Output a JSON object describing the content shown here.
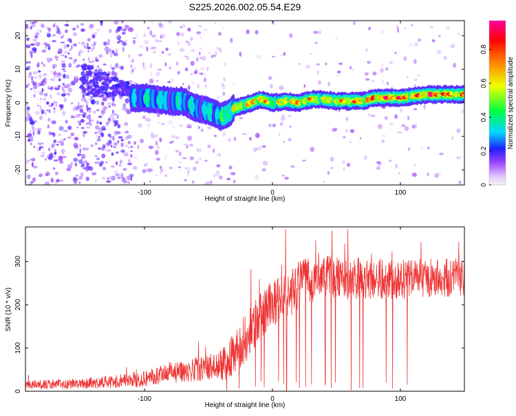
{
  "title": "S225.2026.002.05.54.E29",
  "chart_data": [
    {
      "type": "heatmap",
      "xlabel": "Height of straight line (km)",
      "ylabel": "Frequency (Hz)",
      "xlim": [
        -193,
        150
      ],
      "ylim": [
        -24.5,
        24.5
      ],
      "xticks": [
        -100,
        0,
        100
      ],
      "yticks": [
        -20,
        -10,
        0,
        10,
        20
      ],
      "colorbar": {
        "label": "Normalized spectral amplitude",
        "range": [
          0,
          0.97
        ],
        "ticks": [
          0,
          0.2,
          0.4,
          0.6,
          0.8
        ]
      },
      "ridge": {
        "x": [
          -110,
          -100,
          -90,
          -80,
          -70,
          -60,
          -50,
          -40,
          -35,
          -30,
          -20,
          -10,
          0,
          10,
          20,
          30,
          40,
          50,
          60,
          70,
          80,
          90,
          100,
          110,
          120,
          130,
          140,
          150
        ],
        "freq": [
          1.5,
          1.5,
          1.0,
          0.5,
          0.5,
          -1.5,
          -2.5,
          -4.0,
          -3.5,
          -1.5,
          -0.5,
          1.0,
          0.0,
          0.5,
          0.0,
          1.0,
          1.0,
          0.5,
          0.5,
          0.5,
          1.5,
          1.5,
          1.5,
          2.0,
          2.5,
          2.5,
          2.5,
          2.5
        ],
        "amp": [
          0.3,
          0.35,
          0.35,
          0.3,
          0.4,
          0.3,
          0.35,
          0.4,
          0.5,
          0.6,
          0.7,
          0.85,
          0.55,
          0.7,
          0.75,
          0.7,
          0.6,
          0.7,
          0.75,
          0.8,
          0.85,
          0.95,
          0.9,
          0.75,
          0.9,
          0.95,
          0.8,
          0.7
        ]
      }
    },
    {
      "type": "line",
      "xlabel": "Height of straight line (km)",
      "ylabel": "SNR (10 * v/v)",
      "xlim": [
        -193,
        150
      ],
      "ylim": [
        0,
        380
      ],
      "xticks": [
        -100,
        0,
        100
      ],
      "yticks": [
        0,
        100,
        200,
        300
      ],
      "color": "#ee3333",
      "envelope": {
        "x": [
          -193,
          -150,
          -120,
          -100,
          -90,
          -80,
          -70,
          -60,
          -50,
          -40,
          -35,
          -30,
          -25,
          -20,
          -15,
          -10,
          -5,
          0,
          5,
          10,
          15,
          20,
          25,
          30,
          40,
          50,
          60,
          70,
          80,
          90,
          100,
          110,
          120,
          130,
          140,
          150
        ],
        "mid": [
          15,
          18,
          22,
          30,
          35,
          40,
          45,
          50,
          55,
          60,
          70,
          90,
          110,
          130,
          150,
          175,
          190,
          200,
          210,
          215,
          225,
          245,
          255,
          260,
          265,
          265,
          260,
          260,
          260,
          258,
          258,
          262,
          262,
          262,
          263,
          265
        ],
        "amp": [
          10,
          12,
          15,
          20,
          22,
          25,
          25,
          28,
          30,
          35,
          45,
          50,
          55,
          60,
          60,
          60,
          55,
          55,
          55,
          55,
          55,
          55,
          55,
          55,
          50,
          50,
          50,
          50,
          45,
          45,
          45,
          45,
          45,
          45,
          45,
          45
        ]
      }
    }
  ]
}
